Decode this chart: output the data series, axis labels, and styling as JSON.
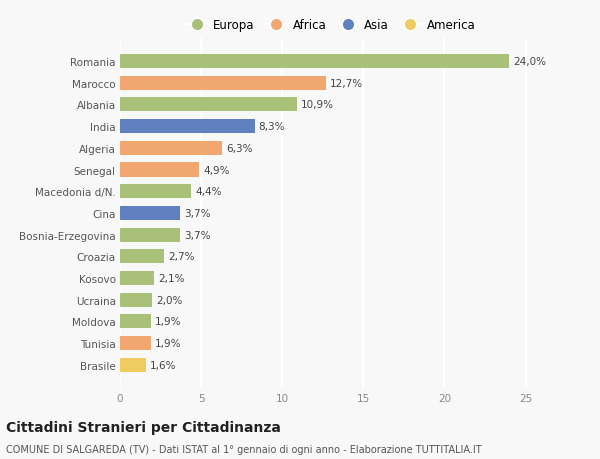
{
  "countries": [
    "Romania",
    "Marocco",
    "Albania",
    "India",
    "Algeria",
    "Senegal",
    "Macedonia d/N.",
    "Cina",
    "Bosnia-Erzegovina",
    "Croazia",
    "Kosovo",
    "Ucraina",
    "Moldova",
    "Tunisia",
    "Brasile"
  ],
  "values": [
    24.0,
    12.7,
    10.9,
    8.3,
    6.3,
    4.9,
    4.4,
    3.7,
    3.7,
    2.7,
    2.1,
    2.0,
    1.9,
    1.9,
    1.6
  ],
  "labels": [
    "24,0%",
    "12,7%",
    "10,9%",
    "8,3%",
    "6,3%",
    "4,9%",
    "4,4%",
    "3,7%",
    "3,7%",
    "2,7%",
    "2,1%",
    "2,0%",
    "1,9%",
    "1,9%",
    "1,6%"
  ],
  "continents": [
    "Europa",
    "Africa",
    "Europa",
    "Asia",
    "Africa",
    "Africa",
    "Europa",
    "Asia",
    "Europa",
    "Europa",
    "Europa",
    "Europa",
    "Europa",
    "Africa",
    "America"
  ],
  "continent_colors": {
    "Europa": "#a8c077",
    "Africa": "#f0a870",
    "Asia": "#6080c0",
    "America": "#f0cc60"
  },
  "legend_order": [
    "Europa",
    "Africa",
    "Asia",
    "America"
  ],
  "title": "Cittadini Stranieri per Cittadinanza",
  "subtitle": "COMUNE DI SALGAREDA (TV) - Dati ISTAT al 1° gennaio di ogni anno - Elaborazione TUTTITALIA.IT",
  "xlim": [
    0,
    27
  ],
  "xticks": [
    0,
    5,
    10,
    15,
    20,
    25
  ],
  "background_color": "#f8f8f8",
  "grid_color": "#ffffff",
  "bar_height": 0.65,
  "label_fontsize": 7.5,
  "title_fontsize": 10,
  "subtitle_fontsize": 7,
  "tick_fontsize": 7.5,
  "legend_fontsize": 8.5
}
